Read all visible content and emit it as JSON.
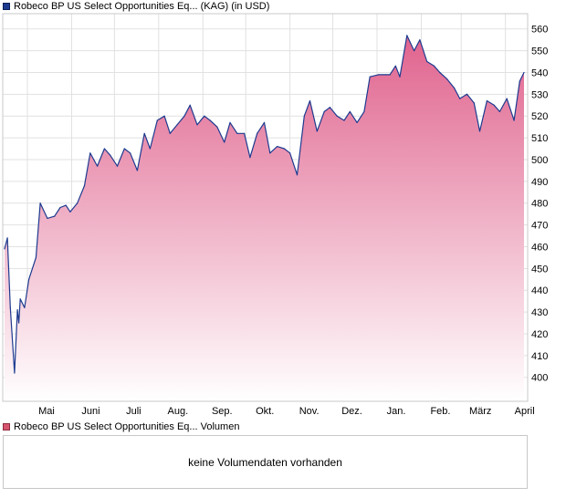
{
  "chart_data": {
    "type": "area",
    "title": "Robeco BP US Select Opportunities Eq... (KAG) (in USD)",
    "xlabel": "",
    "ylabel": "",
    "ylim": [
      389,
      567
    ],
    "grid": true,
    "legend_position": "top-left",
    "colors": {
      "line": "#1d3a8f",
      "fill_top": "#e0638e",
      "fill_bottom": "#ffffff",
      "grid": "#e1e1e1"
    },
    "x_ticks": [
      "Mai",
      "Juni",
      "Juli",
      "Aug.",
      "Sep.",
      "Okt.",
      "Nov.",
      "Dez.",
      "Jan.",
      "Feb.",
      "März",
      "April"
    ],
    "y_ticks": [
      400,
      410,
      420,
      430,
      440,
      450,
      460,
      470,
      480,
      490,
      500,
      510,
      520,
      530,
      540,
      550,
      560
    ],
    "series": [
      {
        "name": "Robeco BP US Select Opportunities Eq... (KAG) (in USD)",
        "x": [
          "2024-04-15",
          "2024-04-17",
          "2024-04-19",
          "2024-04-22",
          "2024-04-24",
          "2024-04-25",
          "2024-04-26",
          "2024-04-29",
          "2024-05-02",
          "2024-05-07",
          "2024-05-10",
          "2024-05-15",
          "2024-05-20",
          "2024-05-24",
          "2024-05-28",
          "2024-05-31",
          "2024-06-05",
          "2024-06-10",
          "2024-06-14",
          "2024-06-19",
          "2024-06-24",
          "2024-06-28",
          "2024-07-03",
          "2024-07-08",
          "2024-07-12",
          "2024-07-17",
          "2024-07-22",
          "2024-07-26",
          "2024-07-31",
          "2024-08-05",
          "2024-08-09",
          "2024-08-14",
          "2024-08-19",
          "2024-08-23",
          "2024-08-28",
          "2024-09-02",
          "2024-09-06",
          "2024-09-11",
          "2024-09-16",
          "2024-09-20",
          "2024-09-25",
          "2024-09-30",
          "2024-10-04",
          "2024-10-09",
          "2024-10-14",
          "2024-10-18",
          "2024-10-23",
          "2024-10-28",
          "2024-11-01",
          "2024-11-06",
          "2024-11-11",
          "2024-11-15",
          "2024-11-20",
          "2024-11-25",
          "2024-11-29",
          "2024-12-04",
          "2024-12-09",
          "2024-12-13",
          "2024-12-18",
          "2024-12-23",
          "2024-12-27",
          "2025-01-02",
          "2025-01-07",
          "2025-01-10",
          "2025-01-14",
          "2025-01-17",
          "2025-01-22",
          "2025-01-27",
          "2025-01-31",
          "2025-02-05",
          "2025-02-10",
          "2025-02-14",
          "2025-02-19",
          "2025-02-24",
          "2025-02-28",
          "2025-03-05",
          "2025-03-10",
          "2025-03-14",
          "2025-03-19",
          "2025-03-24",
          "2025-03-28",
          "2025-04-02",
          "2025-04-07",
          "2025-04-11",
          "2025-04-14"
        ],
        "values": [
          459,
          464,
          432,
          402,
          431,
          425,
          436,
          432,
          445,
          455,
          480,
          473,
          474,
          478,
          479,
          476,
          480,
          488,
          503,
          497,
          505,
          502,
          497,
          505,
          503,
          495,
          512,
          505,
          518,
          520,
          512,
          516,
          520,
          525,
          516,
          520,
          518,
          515,
          508,
          517,
          512,
          512,
          501,
          512,
          517,
          503,
          506,
          505,
          503,
          493,
          520,
          527,
          513,
          522,
          524,
          520,
          518,
          522,
          517,
          522,
          538,
          539,
          539,
          539,
          543,
          538,
          557,
          550,
          555,
          545,
          543,
          540,
          537,
          533,
          528,
          530,
          526,
          513,
          527,
          525,
          522,
          528,
          518,
          536,
          540
        ]
      }
    ]
  },
  "volume_panel": {
    "legend": "Robeco BP US Select Opportunities Eq... Volumen",
    "message": "keine Volumendaten vorhanden"
  }
}
